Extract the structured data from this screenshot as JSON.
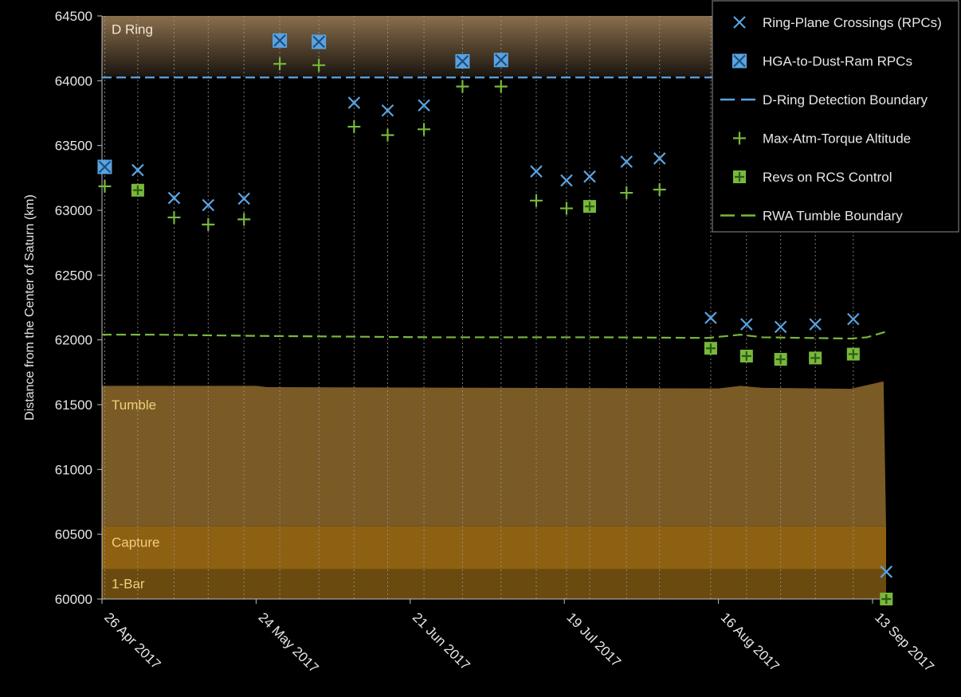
{
  "chart_data": {
    "type": "scatter",
    "ylabel": "Distance from the Center of Saturn (km)",
    "ylim": [
      60000,
      64500
    ],
    "yticks": [
      60000,
      60500,
      61000,
      61500,
      62000,
      62500,
      63000,
      63500,
      64000,
      64500
    ],
    "x_start_day": 0,
    "x_end_day": 140,
    "xticks": [
      {
        "day": 0,
        "label": "26 Apr 2017"
      },
      {
        "day": 28,
        "label": "24 May 2017"
      },
      {
        "day": 56,
        "label": "21 Jun 2017"
      },
      {
        "day": 84,
        "label": "19 Jul 2017"
      },
      {
        "day": 112,
        "label": "16 Aug 2017"
      },
      {
        "day": 140,
        "label": "13 Sep 2017"
      }
    ],
    "rev_days": [
      0.5,
      6.5,
      13.1,
      19.3,
      25.8,
      32.3,
      39.4,
      45.8,
      51.9,
      58.5,
      65.5,
      72.5,
      78.9,
      84.4,
      88.6,
      95.3,
      101.3,
      110.6,
      117.1,
      123.3,
      129.6,
      136.5,
      142.5
    ],
    "bands": [
      {
        "name": "D Ring",
        "from": 64030,
        "to": 64500,
        "color": "#8a6f4c",
        "label_value": 64400
      },
      {
        "name": "Tumble",
        "from": 60560,
        "to": 61640,
        "color": "#7a5a25",
        "label_value": 61500
      },
      {
        "name": "Capture",
        "from": 60230,
        "to": 60560,
        "color": "#8e6012",
        "label_value": 60440
      },
      {
        "name": "1-Bar",
        "from": 60000,
        "to": 60230,
        "color": "#6a4a0e",
        "label_value": 60120
      }
    ],
    "tumble_top": [
      {
        "day": 0,
        "value": 61645
      },
      {
        "day": 28,
        "value": 61645
      },
      {
        "day": 30,
        "value": 61635
      },
      {
        "day": 112,
        "value": 61625
      },
      {
        "day": 116,
        "value": 61645
      },
      {
        "day": 120,
        "value": 61630
      },
      {
        "day": 136,
        "value": 61622
      },
      {
        "day": 142,
        "value": 61680
      }
    ],
    "series": [
      {
        "name": "Ring-Plane Crossings (RPCs)",
        "marker": "x",
        "color": "#5aa3e2",
        "points": [
          {
            "day": 0.5,
            "value": 63335
          },
          {
            "day": 6.5,
            "value": 63310
          },
          {
            "day": 13.1,
            "value": 63095
          },
          {
            "day": 19.3,
            "value": 63040
          },
          {
            "day": 25.8,
            "value": 63090
          },
          {
            "day": 32.3,
            "value": 64310
          },
          {
            "day": 39.4,
            "value": 64300
          },
          {
            "day": 45.8,
            "value": 63830
          },
          {
            "day": 51.9,
            "value": 63770
          },
          {
            "day": 58.5,
            "value": 63810
          },
          {
            "day": 65.5,
            "value": 64150
          },
          {
            "day": 72.5,
            "value": 64160
          },
          {
            "day": 78.9,
            "value": 63300
          },
          {
            "day": 84.4,
            "value": 63230
          },
          {
            "day": 88.6,
            "value": 63260
          },
          {
            "day": 95.3,
            "value": 63375
          },
          {
            "day": 101.3,
            "value": 63400
          },
          {
            "day": 110.6,
            "value": 62170
          },
          {
            "day": 117.1,
            "value": 62120
          },
          {
            "day": 123.3,
            "value": 62100
          },
          {
            "day": 129.6,
            "value": 62120
          },
          {
            "day": 136.5,
            "value": 62160
          },
          {
            "day": 142.5,
            "value": 60210
          }
        ]
      },
      {
        "name": "HGA-to-Dust-Ram RPCs",
        "marker": "boxed-x",
        "color": "#5aa3e2",
        "points": [
          {
            "day": 0.5,
            "value": 63335
          },
          {
            "day": 32.3,
            "value": 64310
          },
          {
            "day": 39.4,
            "value": 64300
          },
          {
            "day": 65.5,
            "value": 64150
          },
          {
            "day": 72.5,
            "value": 64160
          }
        ]
      },
      {
        "name": "D-Ring Detection Boundary",
        "marker": "dashed-line",
        "color": "#5aa3e2",
        "points": [
          {
            "day": 0,
            "value": 64025
          },
          {
            "day": 143,
            "value": 64025
          }
        ]
      },
      {
        "name": "Max-Atm-Torque Altitude",
        "marker": "plus",
        "color": "#78b83c",
        "points": [
          {
            "day": 0.5,
            "value": 63185
          },
          {
            "day": 6.5,
            "value": 63155
          },
          {
            "day": 13.1,
            "value": 62945
          },
          {
            "day": 19.3,
            "value": 62890
          },
          {
            "day": 25.8,
            "value": 62930
          },
          {
            "day": 32.3,
            "value": 64130
          },
          {
            "day": 39.4,
            "value": 64120
          },
          {
            "day": 45.8,
            "value": 63645
          },
          {
            "day": 51.9,
            "value": 63580
          },
          {
            "day": 58.5,
            "value": 63625
          },
          {
            "day": 65.5,
            "value": 63955
          },
          {
            "day": 72.5,
            "value": 63955
          },
          {
            "day": 78.9,
            "value": 63075
          },
          {
            "day": 84.4,
            "value": 63015
          },
          {
            "day": 88.6,
            "value": 63030
          },
          {
            "day": 95.3,
            "value": 63135
          },
          {
            "day": 101.3,
            "value": 63160
          },
          {
            "day": 110.6,
            "value": 61935
          },
          {
            "day": 117.1,
            "value": 61875
          },
          {
            "day": 123.3,
            "value": 61850
          },
          {
            "day": 129.6,
            "value": 61860
          },
          {
            "day": 136.5,
            "value": 61890
          },
          {
            "day": 142.5,
            "value": 60000
          }
        ]
      },
      {
        "name": "Revs on RCS Control",
        "marker": "boxed-plus",
        "color": "#78b83c",
        "points": [
          {
            "day": 6.5,
            "value": 63155
          },
          {
            "day": 88.6,
            "value": 63030
          },
          {
            "day": 110.6,
            "value": 61935
          },
          {
            "day": 117.1,
            "value": 61875
          },
          {
            "day": 123.3,
            "value": 61850
          },
          {
            "day": 129.6,
            "value": 61860
          },
          {
            "day": 136.5,
            "value": 61890
          },
          {
            "day": 142.5,
            "value": 60000
          }
        ]
      },
      {
        "name": "RWA Tumble Boundary",
        "marker": "dashed-line",
        "color": "#78b83c",
        "points": [
          {
            "day": 0,
            "value": 62040
          },
          {
            "day": 10,
            "value": 62040
          },
          {
            "day": 30,
            "value": 62030
          },
          {
            "day": 60,
            "value": 62020
          },
          {
            "day": 90,
            "value": 62020
          },
          {
            "day": 110,
            "value": 62015
          },
          {
            "day": 116,
            "value": 62040
          },
          {
            "day": 120,
            "value": 62020
          },
          {
            "day": 136,
            "value": 62010
          },
          {
            "day": 139,
            "value": 62020
          },
          {
            "day": 143,
            "value": 62070
          }
        ]
      }
    ]
  },
  "legend": {
    "items": [
      "Ring-Plane Crossings (RPCs)",
      "HGA-to-Dust-Ram RPCs",
      "D-Ring Detection Boundary",
      "Max-Atm-Torque Altitude",
      "Revs on RCS Control",
      "RWA Tumble Boundary"
    ]
  }
}
